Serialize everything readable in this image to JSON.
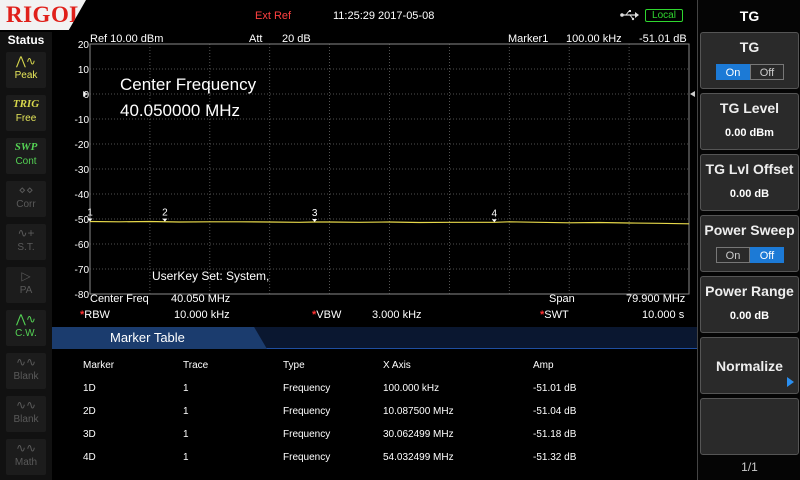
{
  "topbar": {
    "logo": "RIGOL",
    "ext_ref": "Ext Ref",
    "datetime": "11:25:29 2017-05-08",
    "usb_icon": "usb-icon",
    "local": "Local"
  },
  "status": {
    "title": "Status",
    "buttons": [
      {
        "icon": "peak-icon",
        "glyph": "⋀∿",
        "label": "Peak",
        "state": "on"
      },
      {
        "icon": "trig-icon",
        "glyph": "TRIG",
        "label": "Free",
        "state": "on"
      },
      {
        "icon": "swp-icon",
        "glyph": "SWP",
        "label": "Cont",
        "state": "on"
      },
      {
        "icon": "corr-icon",
        "glyph": "⋄⋄",
        "label": "Corr",
        "state": "off"
      },
      {
        "icon": "st-icon",
        "glyph": "∿+",
        "label": "S.T.",
        "state": "off"
      },
      {
        "icon": "pa-icon",
        "glyph": "▷",
        "label": "PA",
        "state": "off"
      },
      {
        "icon": "cw-icon",
        "glyph": "⋀∿",
        "label": "C.W.",
        "state": "on"
      },
      {
        "icon": "blank-icon",
        "glyph": "∿∿",
        "label": "Blank",
        "state": "off"
      },
      {
        "icon": "blank2-icon",
        "glyph": "∿∿",
        "label": "Blank",
        "state": "off"
      },
      {
        "icon": "math-icon",
        "glyph": "∿∿",
        "label": "Math",
        "state": "off"
      }
    ]
  },
  "header": {
    "ref": "Ref  10.00 dBm",
    "att_label": "Att",
    "att_value": "20 dB",
    "marker_label": "Marker1",
    "marker_freq": "100.00 kHz",
    "marker_amp": "-51.01 dB"
  },
  "overlay": {
    "line1": "Center Frequency",
    "line2": "40.050000 MHz",
    "userkey": "UserKey Set:   System,"
  },
  "chart_data": {
    "type": "line",
    "x_start_mhz": 0.1,
    "x_stop_mhz": 80.0,
    "ylim": [
      -80,
      20
    ],
    "yticks": [
      "20",
      "10",
      "0",
      "-10",
      "-20",
      "-30",
      "-40",
      "-50",
      "-60",
      "-70",
      "-80"
    ],
    "grid": true,
    "trace_color": "#e6d84a",
    "series": [
      {
        "x": [
          0.1,
          4,
          8,
          12,
          16,
          20,
          24,
          28,
          30.06,
          32,
          36,
          40,
          44,
          48,
          52,
          54.03,
          56,
          60,
          64,
          68,
          72,
          76,
          80
        ],
        "y": [
          -51.0,
          -51.1,
          -51.0,
          -51.2,
          -51.1,
          -51.1,
          -51.2,
          -51.3,
          -51.2,
          -51.2,
          -51.3,
          -51.2,
          -51.4,
          -51.3,
          -51.3,
          -51.3,
          -51.1,
          -51.3,
          -51.5,
          -51.4,
          -51.6,
          -51.7,
          -51.9
        ]
      }
    ],
    "markers": [
      {
        "label": "1",
        "x": 0.1,
        "y": -51.01
      },
      {
        "label": "2",
        "x": 10.0875,
        "y": -51.04
      },
      {
        "label": "3",
        "x": 30.062499,
        "y": -51.18
      },
      {
        "label": "4",
        "x": 54.032499,
        "y": -51.32
      }
    ]
  },
  "measurements": {
    "center_label": "Center Freq",
    "center_value": "40.050 MHz",
    "span_label": "Span",
    "span_value": "79.900 MHz",
    "rbw_label": "RBW",
    "rbw_value": "10.000 kHz",
    "vbw_label": "VBW",
    "vbw_value": "3.000 kHz",
    "swt_label": "SWT",
    "swt_value": "10.000 s",
    "star": "*"
  },
  "marker_table": {
    "title": "Marker Table",
    "headers": [
      "Marker",
      "Trace",
      "Type",
      "X Axis",
      "Amp"
    ],
    "rows": [
      [
        "1D",
        "1",
        "Frequency",
        "100.000 kHz",
        "-51.01 dB"
      ],
      [
        "2D",
        "1",
        "Frequency",
        "10.087500 MHz",
        "-51.04 dB"
      ],
      [
        "3D",
        "1",
        "Frequency",
        "30.062499 MHz",
        "-51.18 dB"
      ],
      [
        "4D",
        "1",
        "Frequency",
        "54.032499 MHz",
        "-51.32 dB"
      ]
    ]
  },
  "menu": {
    "title": "TG",
    "tg": {
      "label": "TG",
      "on": "On",
      "off": "Off"
    },
    "tg_level": {
      "label": "TG Level",
      "value": "0.00 dBm"
    },
    "tg_offset": {
      "label": "TG Lvl Offset",
      "value": "0.00 dB"
    },
    "power_sweep": {
      "label": "Power Sweep",
      "on": "On",
      "off": "Off"
    },
    "power_range": {
      "label": "Power Range",
      "value": "0.00 dB"
    },
    "normalize": {
      "label": "Normalize"
    },
    "page": "1/1"
  }
}
